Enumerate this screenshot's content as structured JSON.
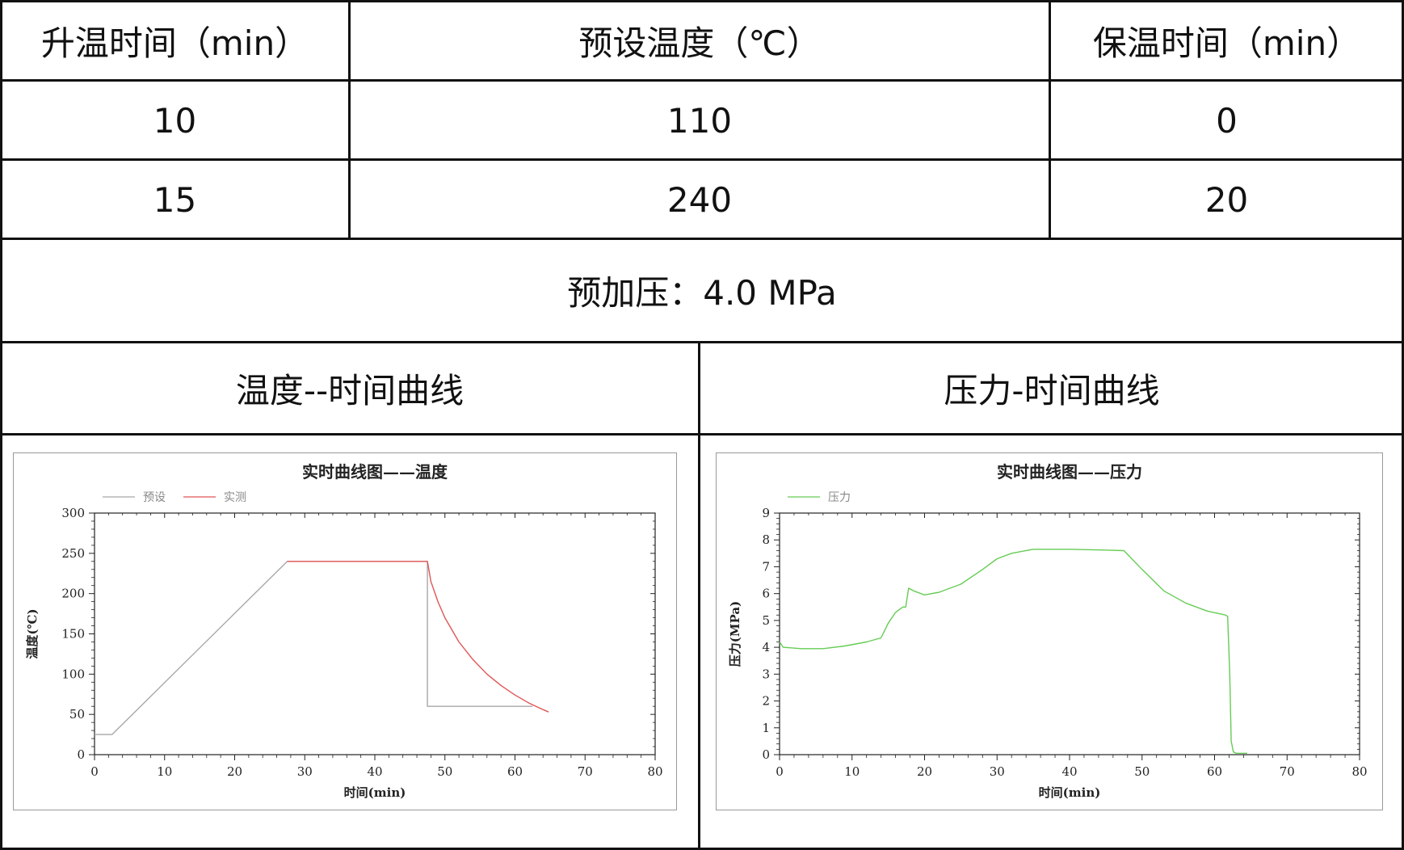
{
  "table": {
    "headers": [
      "升温时间（min）",
      "预设温度（℃）",
      "保温时间（min）"
    ],
    "rows": [
      [
        "10",
        "110",
        "0"
      ],
      [
        "15",
        "240",
        "20"
      ]
    ],
    "preload": "预加压：4.0 MPa",
    "section_titles": [
      "温度--时间曲线",
      "压力-时间曲线"
    ]
  },
  "chart_data": [
    {
      "type": "line",
      "title": "实时曲线图——温度",
      "xlabel": "时间(min)",
      "ylabel": "温度(℃)",
      "xlim": [
        0,
        80
      ],
      "ylim": [
        0,
        300
      ],
      "xticks": [
        0,
        10,
        20,
        30,
        40,
        50,
        60,
        70,
        80
      ],
      "yticks": [
        0,
        50,
        100,
        150,
        200,
        250,
        300
      ],
      "x_tick_labels": [
        "0",
        "10",
        "20",
        "30",
        "40",
        "50",
        "60",
        "70",
        "80"
      ],
      "y_tick_labels": [
        "0",
        "50",
        "100",
        "150",
        "200",
        "250",
        "300"
      ],
      "legend_position": "top-left",
      "series": [
        {
          "name": "预设",
          "color": "#a8a8a8",
          "points": [
            [
              0,
              25
            ],
            [
              2.5,
              25
            ],
            [
              27.5,
              240
            ],
            [
              47.5,
              240
            ],
            [
              47.5,
              60
            ],
            [
              62.5,
              60
            ]
          ]
        },
        {
          "name": "实测",
          "color": "#e05555",
          "points": [
            [
              27.5,
              240
            ],
            [
              30,
              240
            ],
            [
              35,
              240
            ],
            [
              40,
              240
            ],
            [
              45,
              240
            ],
            [
              47.5,
              240
            ],
            [
              48,
              215
            ],
            [
              49,
              190
            ],
            [
              50,
              170
            ],
            [
              52,
              140
            ],
            [
              54,
              118
            ],
            [
              56,
              100
            ],
            [
              58,
              86
            ],
            [
              60,
              74
            ],
            [
              62,
              64
            ],
            [
              64,
              56
            ],
            [
              64.8,
              53
            ]
          ]
        }
      ]
    },
    {
      "type": "line",
      "title": "实时曲线图——压力",
      "xlabel": "时间(min)",
      "ylabel": "压力(MPa)",
      "xlim": [
        0,
        80
      ],
      "ylim": [
        0,
        9
      ],
      "xticks": [
        0,
        10,
        20,
        30,
        40,
        50,
        60,
        70,
        80
      ],
      "yticks": [
        0,
        1,
        2,
        3,
        4,
        5,
        6,
        7,
        8,
        9
      ],
      "x_tick_labels": [
        "0",
        "10",
        "20",
        "30",
        "40",
        "50",
        "60",
        "70",
        "80"
      ],
      "y_tick_labels": [
        "0",
        "1",
        "2",
        "3",
        "4",
        "5",
        "6",
        "7",
        "8",
        "9"
      ],
      "legend_position": "top-left",
      "series": [
        {
          "name": "压力",
          "color": "#66cc55",
          "points": [
            [
              0,
              4.2
            ],
            [
              0.5,
              4.0
            ],
            [
              3,
              3.95
            ],
            [
              6,
              3.95
            ],
            [
              9,
              4.05
            ],
            [
              12,
              4.2
            ],
            [
              14,
              4.35
            ],
            [
              15,
              4.9
            ],
            [
              16,
              5.3
            ],
            [
              17,
              5.5
            ],
            [
              17.4,
              5.5
            ],
            [
              17.8,
              6.2
            ],
            [
              18.5,
              6.1
            ],
            [
              20,
              5.95
            ],
            [
              22,
              6.05
            ],
            [
              25,
              6.35
            ],
            [
              28,
              6.9
            ],
            [
              30,
              7.3
            ],
            [
              32,
              7.5
            ],
            [
              35,
              7.65
            ],
            [
              40,
              7.65
            ],
            [
              45,
              7.62
            ],
            [
              47.5,
              7.6
            ],
            [
              50,
              6.9
            ],
            [
              53,
              6.1
            ],
            [
              56,
              5.65
            ],
            [
              59,
              5.35
            ],
            [
              61.5,
              5.2
            ],
            [
              61.8,
              5.15
            ],
            [
              62.1,
              3.0
            ],
            [
              62.3,
              0.5
            ],
            [
              62.6,
              0.1
            ],
            [
              63,
              0.05
            ],
            [
              64.5,
              0.05
            ]
          ]
        }
      ]
    }
  ]
}
